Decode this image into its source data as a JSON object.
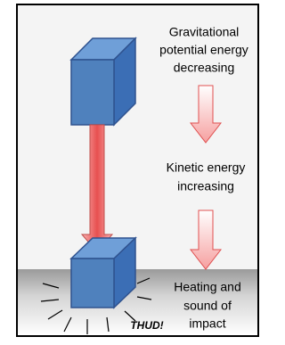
{
  "labels": {
    "potential": [
      "Gravitational",
      "potential energy",
      "decreasing"
    ],
    "kinetic": [
      "Kinetic energy",
      "increasing"
    ],
    "heat": [
      "Heating and",
      "sound of",
      "impact"
    ]
  },
  "thud": "THUD!"
}
